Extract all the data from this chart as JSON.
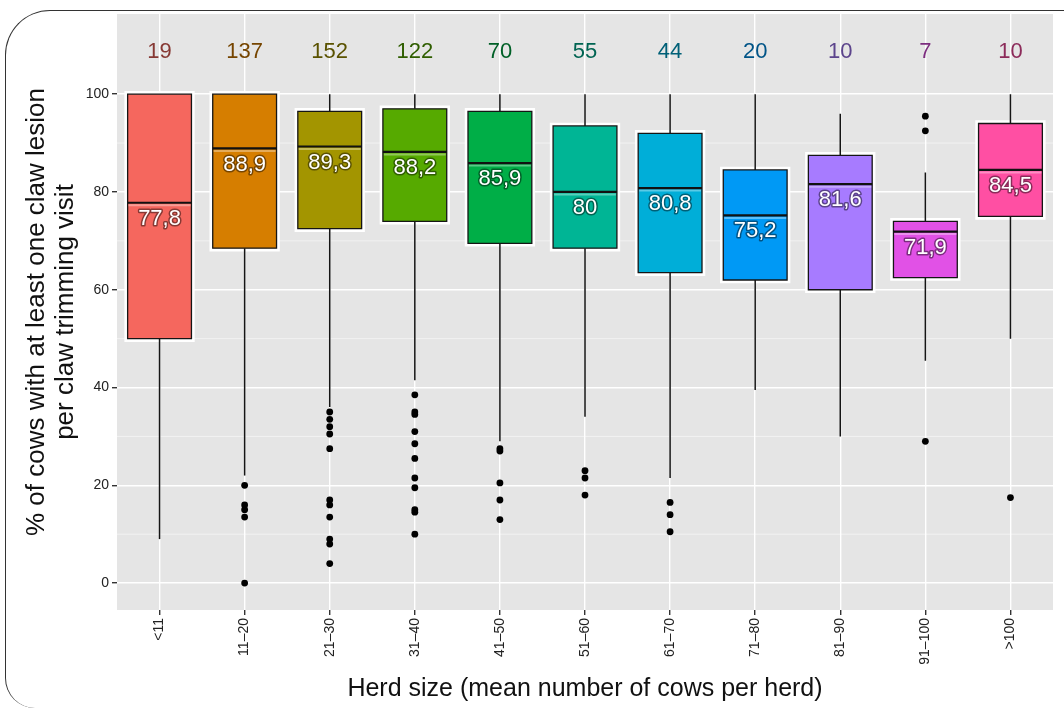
{
  "chart_data": {
    "type": "box",
    "categories": [
      "<11",
      "11–20",
      "21–30",
      "31–40",
      "41–50",
      "51–60",
      "61–70",
      "71–80",
      "81–90",
      "91–100",
      ">100"
    ],
    "boxes": [
      {
        "low": 9,
        "q1": 50,
        "median": 77.8,
        "q3": 100,
        "high": 100
      },
      {
        "low": 22,
        "q1": 68.5,
        "median": 88.9,
        "q3": 100,
        "high": 100,
        "outliers": [
          20,
          16,
          15,
          13.5,
          0
        ]
      },
      {
        "low": 36,
        "q1": 72.5,
        "median": 89.3,
        "q3": 96.5,
        "high": 100,
        "outliers": [
          35,
          33.5,
          32,
          30.5,
          27.5,
          17,
          16,
          13.5,
          9,
          8,
          4
        ]
      },
      {
        "low": 41.5,
        "q1": 74,
        "median": 88.2,
        "q3": 97,
        "high": 100,
        "outliers": [
          38.5,
          35,
          34.5,
          31,
          28.5,
          25.5,
          21.5,
          19.5,
          15,
          14.5,
          10
        ]
      },
      {
        "low": 29,
        "q1": 69.5,
        "median": 85.9,
        "q3": 96.5,
        "high": 100,
        "outliers": [
          27.5,
          27,
          20.5,
          17,
          13
        ]
      },
      {
        "low": 34,
        "q1": 68.5,
        "median": 80,
        "q3": 93.5,
        "high": 100,
        "outliers": [
          23,
          21.5,
          18
        ]
      },
      {
        "low": 21.5,
        "q1": 63.5,
        "median": 80.8,
        "q3": 92,
        "high": 100,
        "outliers": [
          16.5,
          14,
          10.5
        ]
      },
      {
        "low": 39.5,
        "q1": 62,
        "median": 75.2,
        "q3": 84.5,
        "high": 100
      },
      {
        "low": 30,
        "q1": 60,
        "median": 81.6,
        "q3": 87.5,
        "high": 96
      },
      {
        "low": 45.5,
        "q1": 62.5,
        "median": 71.9,
        "q3": 74,
        "high": 84,
        "outliers": [
          95.5,
          92.5,
          29
        ]
      },
      {
        "low": 50,
        "q1": 75,
        "median": 84.5,
        "q3": 94,
        "high": 100,
        "outliers": [
          17.5
        ]
      }
    ],
    "colors": [
      "#f5675e",
      "#d67e00",
      "#a39500",
      "#56aa00",
      "#00ae47",
      "#00b595",
      "#00aed8",
      "#0099f5",
      "#a77bff",
      "#e151e6",
      "#ff4fa3"
    ],
    "xlabel": "Herd size (mean number of cows per herd)",
    "ylabel": "% of cows with at least one claw lesion\nper claw trimming visit",
    "ylim": [
      -5.5,
      116.4
    ],
    "yticks": [
      0,
      20,
      40,
      60,
      80,
      100
    ],
    "grid": true,
    "annotations": [
      {
        "text": "77,8",
        "x": "<11",
        "y": 77.8
      },
      {
        "text": "88,9",
        "x": "11–20",
        "y": 88.9
      },
      {
        "text": "89,3",
        "x": "21–30",
        "y": 89.3
      },
      {
        "text": "88,2",
        "x": "31–40",
        "y": 88.2
      },
      {
        "text": "85,9",
        "x": "41–50",
        "y": 85.9
      },
      {
        "text": "80",
        "x": "51–60",
        "y": 80
      },
      {
        "text": "80,8",
        "x": "61–70",
        "y": 80.8
      },
      {
        "text": "75,2",
        "x": "71–80",
        "y": 75.2
      },
      {
        "text": "81,6",
        "x": "81–90",
        "y": 81.6
      },
      {
        "text": "71,9",
        "x": "91–100",
        "y": 71.9
      },
      {
        "text": "84,5",
        "x": ">100",
        "y": 84.5
      },
      "19",
      "137",
      "152",
      "122",
      "70",
      "55",
      "44",
      "20",
      "10",
      "7",
      "10"
    ]
  }
}
